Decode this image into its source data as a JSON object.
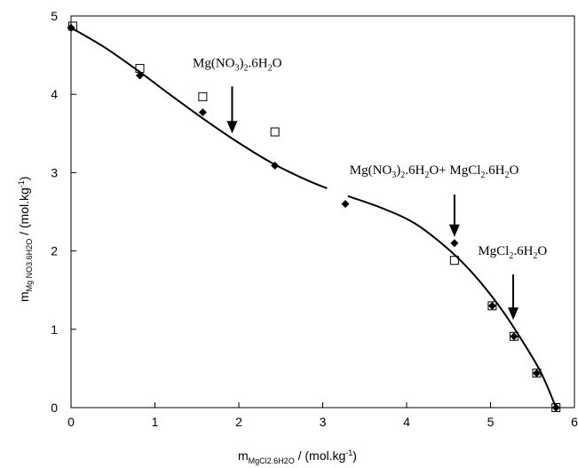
{
  "chart_data": {
    "type": "scatter",
    "xlabel": {
      "main": "m",
      "sub": "MgCl2.6H2O",
      "unit": " / (mol.kg",
      "exp": "-1",
      "close": ")"
    },
    "ylabel": {
      "main": "m",
      "sub": "Mg NO3.6H2O",
      "unit": " / (mol.kg",
      "exp": "-1",
      "close": ")"
    },
    "xlim": [
      0,
      6
    ],
    "ylim": [
      0,
      5
    ],
    "xticks": [
      0,
      1,
      2,
      3,
      4,
      5,
      6
    ],
    "yticks": [
      0,
      1,
      2,
      3,
      4,
      5
    ],
    "grid": false,
    "series": [
      {
        "marker": "filled-diamond",
        "x": [
          0.0,
          0.82,
          1.57,
          2.43,
          3.27,
          4.57,
          5.02,
          5.28,
          5.55,
          5.78
        ],
        "y": [
          4.85,
          4.24,
          3.77,
          3.09,
          2.6,
          2.1,
          1.3,
          0.91,
          0.44,
          0.0
        ]
      },
      {
        "marker": "open-square",
        "x": [
          0.02,
          0.82,
          1.57,
          2.43,
          4.57,
          5.02,
          5.28,
          5.55,
          5.78
        ],
        "y": [
          4.87,
          4.33,
          3.97,
          3.52,
          1.88,
          1.3,
          0.91,
          0.44,
          0.0
        ]
      }
    ],
    "curves": [
      {
        "x": [
          0.0,
          0.4,
          0.8,
          1.2,
          1.6,
          2.0,
          2.4,
          2.8,
          3.05
        ],
        "y": [
          4.85,
          4.6,
          4.3,
          3.98,
          3.67,
          3.38,
          3.12,
          2.91,
          2.8
        ]
      },
      {
        "x": [
          3.3,
          3.7,
          4.1,
          4.5,
          4.8,
          5.1,
          5.35,
          5.6,
          5.78
        ],
        "y": [
          2.7,
          2.55,
          2.35,
          2.02,
          1.7,
          1.3,
          0.9,
          0.45,
          0.0
        ]
      }
    ],
    "annotations": [
      {
        "parts": [
          {
            "t": "Mg(NO"
          },
          {
            "t": "3",
            "sub": true
          },
          {
            "t": ")"
          },
          {
            "t": "2",
            "sub": true
          },
          {
            "t": ".6H"
          },
          {
            "t": "2",
            "sub": true
          },
          {
            "t": "O"
          }
        ],
        "x": 1.45,
        "y": 4.35,
        "arrow_x": 1.92,
        "arrow_from": 4.1,
        "arrow_to": 3.5
      },
      {
        "parts": [
          {
            "t": "Mg(NO"
          },
          {
            "t": "3",
            "sub": true
          },
          {
            "t": ")"
          },
          {
            "t": "2",
            "sub": true
          },
          {
            "t": ".6H"
          },
          {
            "t": "2",
            "sub": true
          },
          {
            "t": "O+ MgCl"
          },
          {
            "t": "2",
            "sub": true
          },
          {
            "t": ".6H"
          },
          {
            "t": "2",
            "sub": true
          },
          {
            "t": "O"
          }
        ],
        "x": 3.32,
        "y": 2.98,
        "arrow_x": 4.57,
        "arrow_from": 2.72,
        "arrow_to": 2.18
      },
      {
        "parts": [
          {
            "t": "MgCl"
          },
          {
            "t": "2",
            "sub": true
          },
          {
            "t": ".6H"
          },
          {
            "t": "2",
            "sub": true
          },
          {
            "t": "O"
          }
        ],
        "x": 4.85,
        "y": 1.95,
        "arrow_x": 5.27,
        "arrow_from": 1.7,
        "arrow_to": 1.12
      }
    ]
  }
}
